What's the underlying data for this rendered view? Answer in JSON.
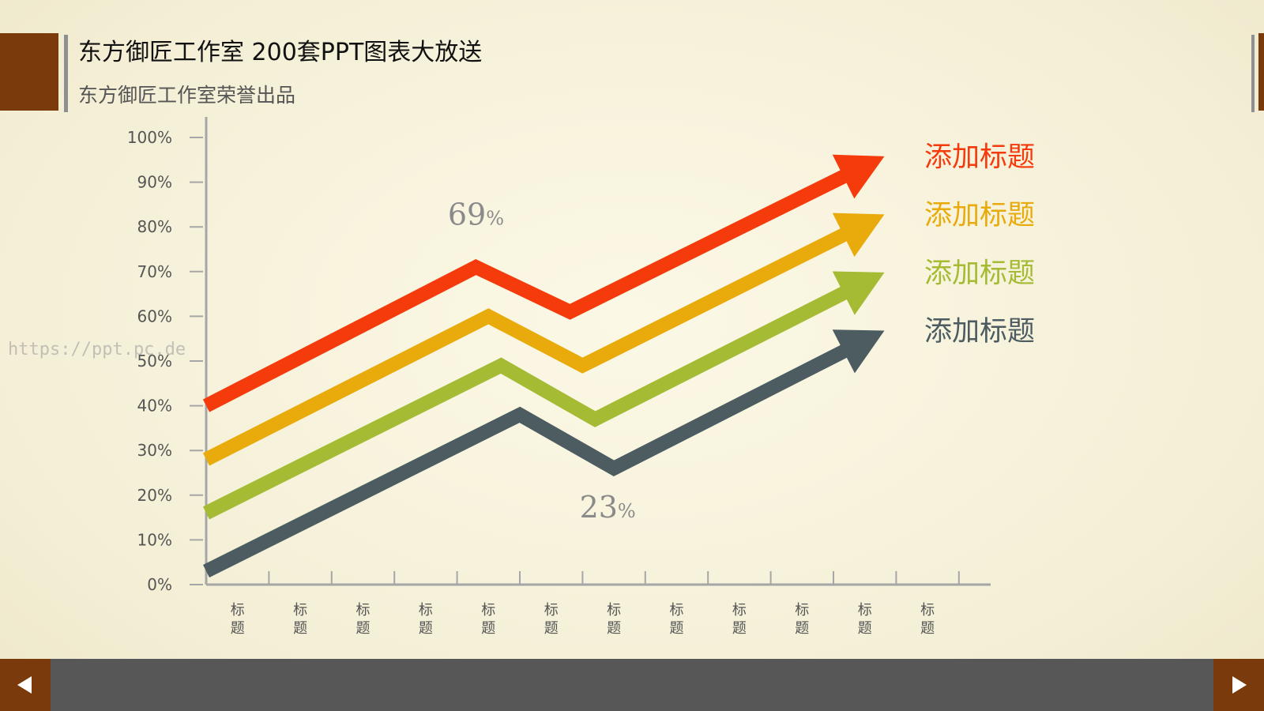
{
  "header": {
    "title": "东方御匠工作室 200套PPT图表大放送",
    "subtitle": "东方御匠工作室荣誉出品"
  },
  "watermark": "https://ppt.pc.de",
  "colors": {
    "accent": "#7b3a0c",
    "footer": "#575757",
    "axis": "#a6a6a6"
  },
  "chart_data": {
    "type": "line",
    "title": "",
    "xlabel": "",
    "ylabel": "",
    "ylim": [
      0,
      100
    ],
    "y_ticks": [
      "0%",
      "10%",
      "20%",
      "30%",
      "40%",
      "50%",
      "60%",
      "70%",
      "80%",
      "90%",
      "100%"
    ],
    "categories": [
      "标\n题",
      "标\n题",
      "标\n题",
      "标\n题",
      "标\n题",
      "标\n题",
      "标\n题",
      "标\n题",
      "标\n题",
      "标\n题",
      "标\n题",
      "标\n题"
    ],
    "grid": false,
    "legend_placement": "right",
    "series": [
      {
        "name": "添加标题",
        "color": "#f53a0c",
        "x": [
          0,
          4.3,
          5.8,
          10.7
        ],
        "y": [
          40,
          71,
          61,
          95
        ]
      },
      {
        "name": "添加标题",
        "color": "#e8ab0b",
        "x": [
          0,
          4.5,
          6.0,
          10.7
        ],
        "y": [
          28,
          60,
          49,
          82
        ]
      },
      {
        "name": "添加标题",
        "color": "#a5bb33",
        "x": [
          0,
          4.7,
          6.2,
          10.7
        ],
        "y": [
          16,
          49,
          37,
          69
        ]
      },
      {
        "name": "添加标题",
        "color": "#4c5c61",
        "x": [
          0,
          5.0,
          6.5,
          10.7
        ],
        "y": [
          3,
          38,
          26,
          56
        ]
      }
    ],
    "annotations": [
      {
        "number": "69",
        "unit": "%",
        "x": 4.3,
        "y": 80.5
      },
      {
        "number": "23",
        "unit": "%",
        "x": 6.4,
        "y": 15
      }
    ]
  },
  "nav": {
    "prev_icon": "triangle-left-icon",
    "next_icon": "triangle-right-icon"
  }
}
